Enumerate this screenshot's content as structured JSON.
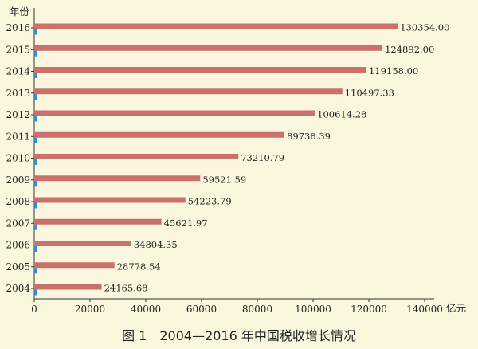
{
  "chart_data": {
    "type": "bar",
    "orientation": "horizontal",
    "title": "图 1　2004—2016 年中国税收增长情况",
    "ylabel": "年份",
    "xlabel": "亿元",
    "categories": [
      "2004",
      "2005",
      "2006",
      "2007",
      "2008",
      "2009",
      "2010",
      "2011",
      "2012",
      "2013",
      "2014",
      "2015",
      "2016"
    ],
    "value_labels": [
      "24165.68",
      "28778.54",
      "34804.35",
      "45621.97",
      "54223.79",
      "59521.59",
      "73210.79",
      "89738.39",
      "100614.28",
      "110497.33",
      "119158.00",
      "124892.00",
      "130354.00"
    ],
    "series": [
      {
        "color": "#c8716d",
        "values": [
          24165.68,
          28778.54,
          34804.35,
          45621.97,
          54223.79,
          59521.59,
          73210.79,
          89738.39,
          100614.28,
          110497.33,
          119158.0,
          124892.0,
          130354.0
        ]
      },
      {
        "color": "#2f8fd0",
        "values": [
          1000,
          1000,
          1000,
          1000,
          1000,
          1000,
          1000,
          1000,
          1000,
          1000,
          1000,
          1000,
          1000
        ]
      }
    ],
    "xticks": [
      0,
      20000,
      40000,
      60000,
      80000,
      100000,
      120000,
      140000
    ],
    "xlim": [
      0,
      140000
    ],
    "grid": false,
    "legend": "none"
  },
  "colors": {
    "background": "#fbf7df",
    "axis": "#333333"
  }
}
